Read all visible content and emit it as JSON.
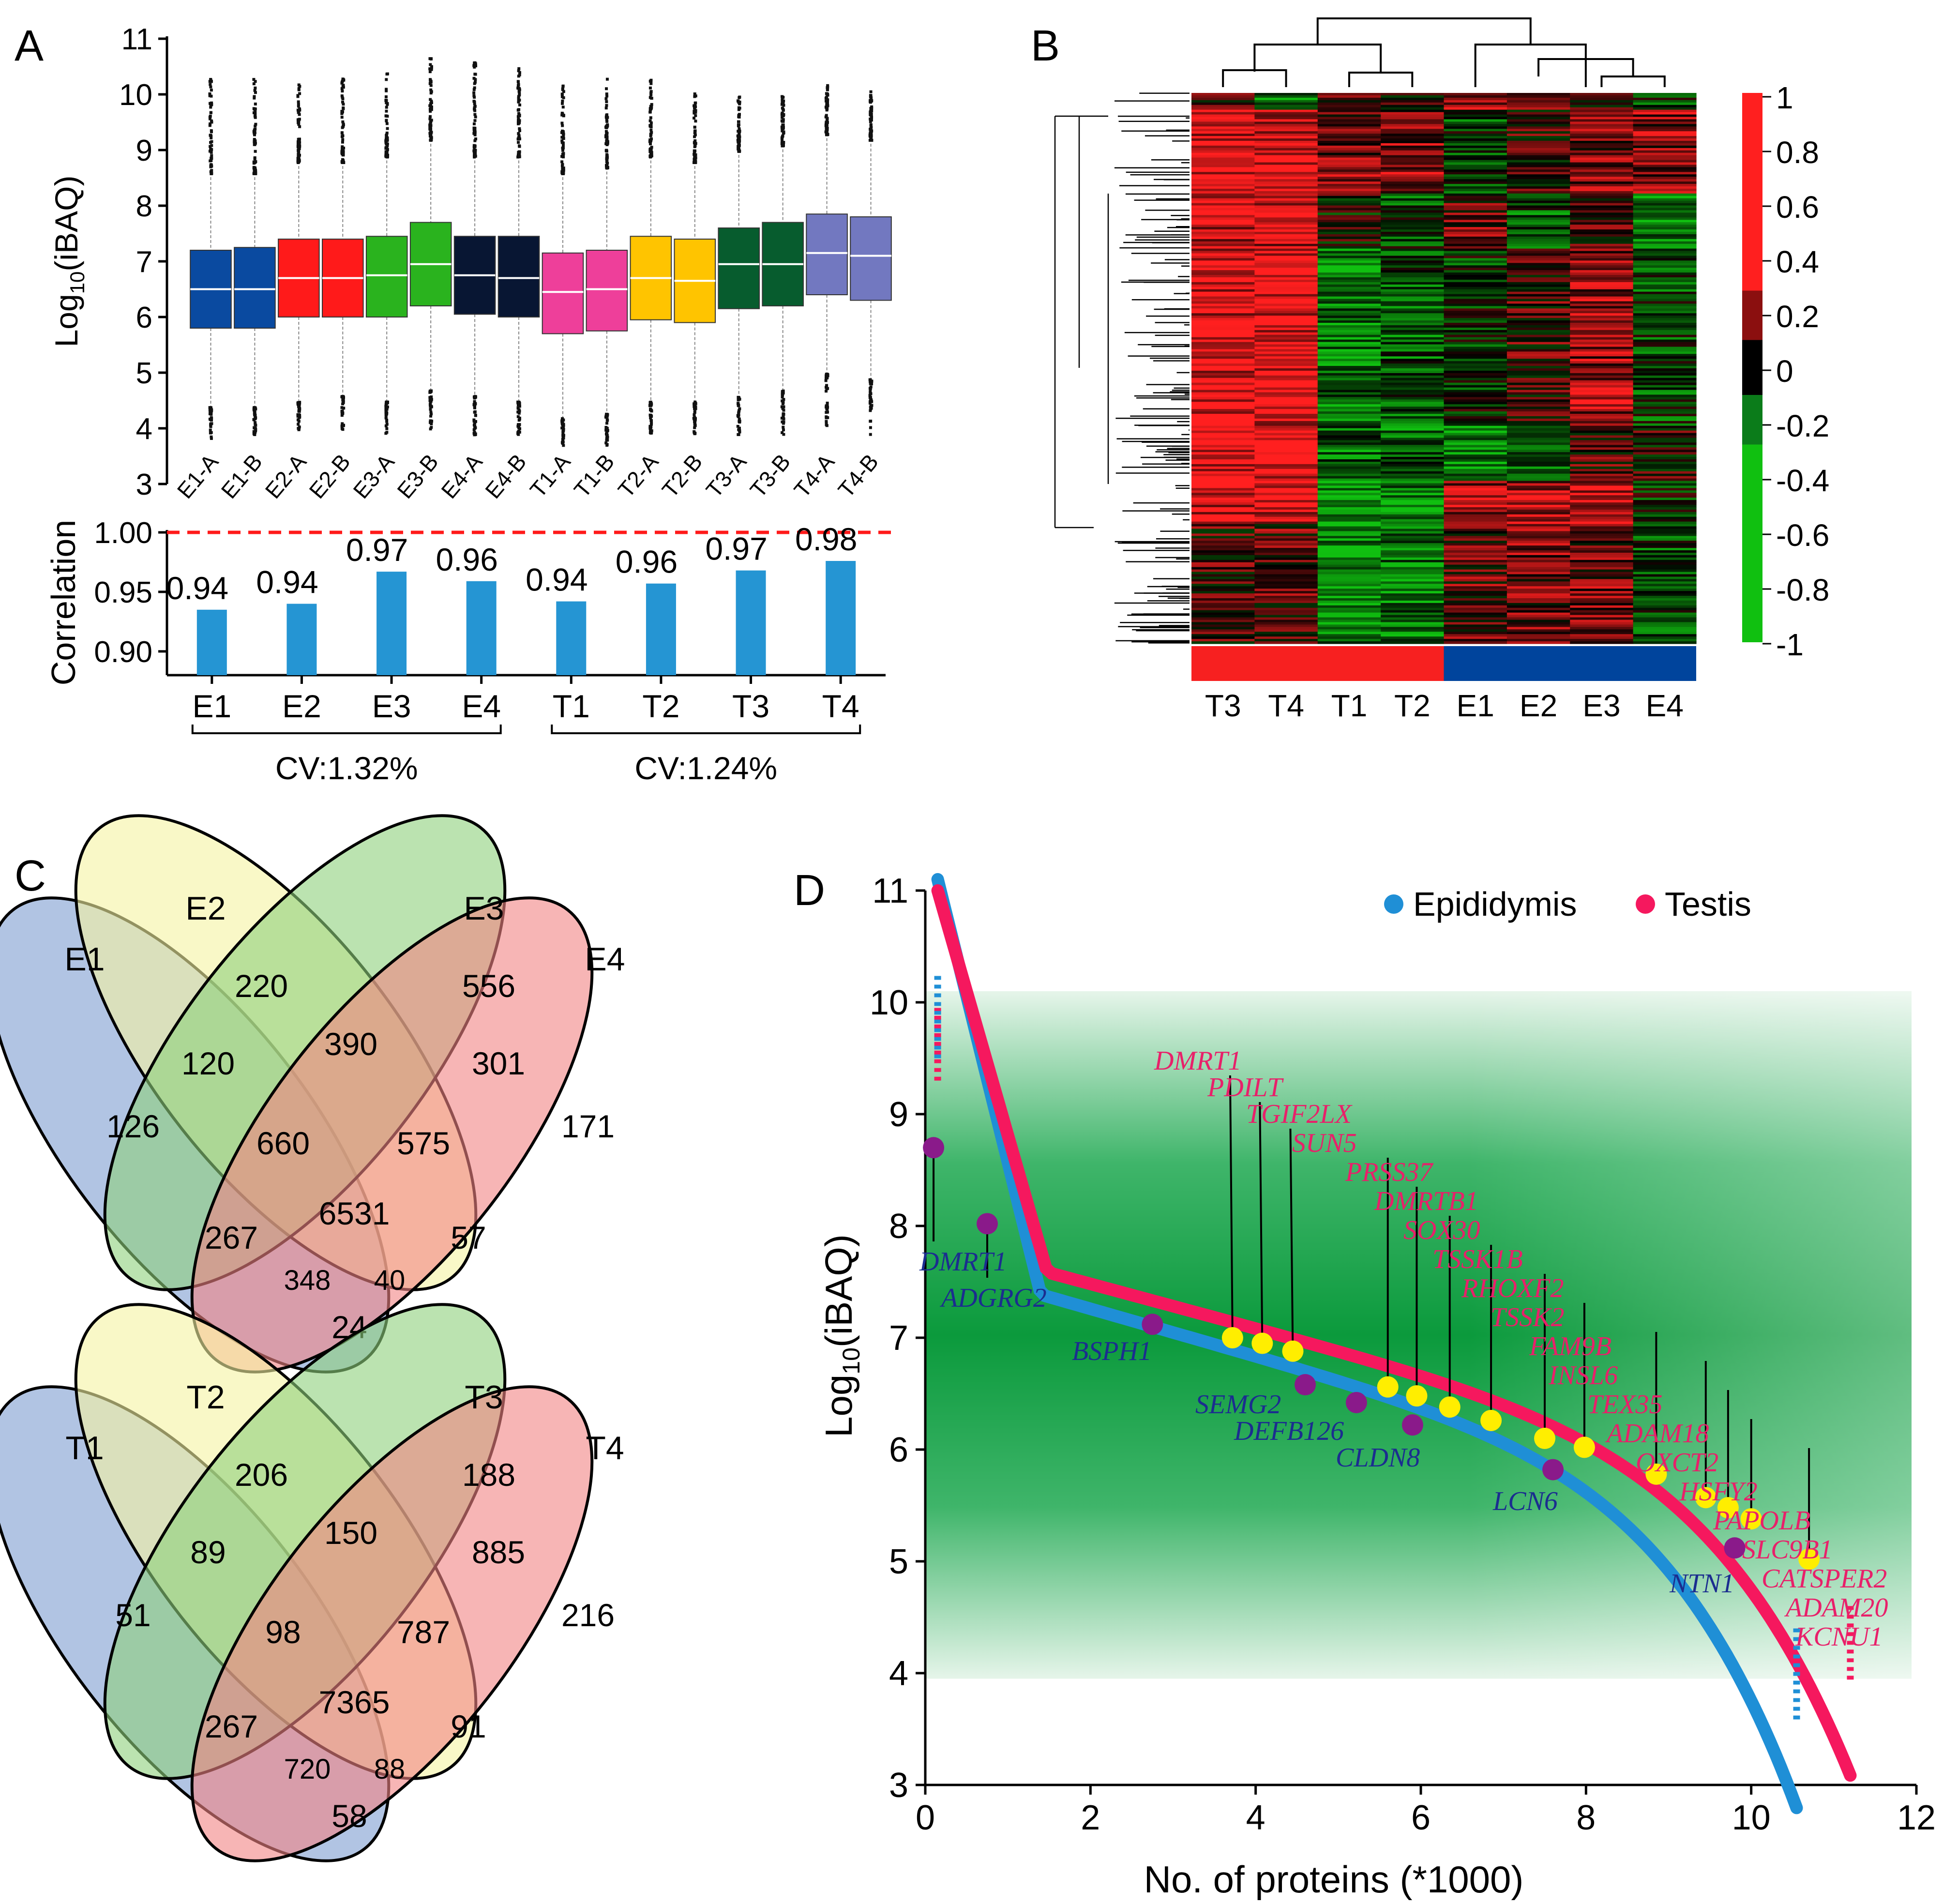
{
  "panel_labels": {
    "a": "A",
    "b": "B",
    "c": "C",
    "d": "D"
  },
  "chart_data": [
    {
      "id": "A-box",
      "type": "box",
      "ylabel_main": "Log",
      "ylabel_sub": "10",
      "ylabel_tail": "(iBAQ)",
      "ylim": [
        3,
        11
      ],
      "yticks": [
        "3",
        "4",
        "5",
        "6",
        "7",
        "8",
        "9",
        "10",
        "11"
      ],
      "colors": {
        "E1": "#0a4aa0",
        "E2": "#ff1a1a",
        "E3": "#2ab31e",
        "E4": "#081633",
        "T1": "#ee3f9a",
        "T2": "#ffc400",
        "T3": "#075c2e",
        "T4": "#7278c0"
      },
      "boxes": [
        {
          "label": "E1-A",
          "group": "E1",
          "q1": 5.8,
          "median": 6.5,
          "q3": 7.2,
          "wlo": 4.4,
          "whi": 8.6,
          "outlo": 3.8,
          "outhi": 10.3
        },
        {
          "label": "E1-B",
          "group": "E1",
          "q1": 5.8,
          "median": 6.5,
          "q3": 7.25,
          "wlo": 4.4,
          "whi": 8.6,
          "outlo": 3.9,
          "outhi": 10.3
        },
        {
          "label": "E2-A",
          "group": "E2",
          "q1": 6.0,
          "median": 6.7,
          "q3": 7.4,
          "wlo": 4.5,
          "whi": 8.8,
          "outlo": 3.9,
          "outhi": 10.3
        },
        {
          "label": "E2-B",
          "group": "E2",
          "q1": 6.0,
          "median": 6.7,
          "q3": 7.4,
          "wlo": 4.6,
          "whi": 8.8,
          "outlo": 4.0,
          "outhi": 10.4
        },
        {
          "label": "E3-A",
          "group": "E3",
          "q1": 6.0,
          "median": 6.75,
          "q3": 7.45,
          "wlo": 4.5,
          "whi": 8.9,
          "outlo": 3.9,
          "outhi": 10.4
        },
        {
          "label": "E3-B",
          "group": "E3",
          "q1": 6.2,
          "median": 6.95,
          "q3": 7.7,
          "wlo": 4.7,
          "whi": 9.2,
          "outlo": 4.0,
          "outhi": 10.7
        },
        {
          "label": "E4-A",
          "group": "E4",
          "q1": 6.05,
          "median": 6.75,
          "q3": 7.45,
          "wlo": 4.6,
          "whi": 8.9,
          "outlo": 3.9,
          "outhi": 10.6
        },
        {
          "label": "E4-B",
          "group": "E4",
          "q1": 6.0,
          "median": 6.7,
          "q3": 7.45,
          "wlo": 4.5,
          "whi": 8.9,
          "outlo": 3.9,
          "outhi": 10.5
        },
        {
          "label": "T1-A",
          "group": "T1",
          "q1": 5.7,
          "median": 6.45,
          "q3": 7.15,
          "wlo": 4.2,
          "whi": 8.6,
          "outlo": 3.7,
          "outhi": 10.2
        },
        {
          "label": "T1-B",
          "group": "T1",
          "q1": 5.75,
          "median": 6.5,
          "q3": 7.2,
          "wlo": 4.3,
          "whi": 8.7,
          "outlo": 3.7,
          "outhi": 10.3
        },
        {
          "label": "T2-A",
          "group": "T2",
          "q1": 5.95,
          "median": 6.7,
          "q3": 7.45,
          "wlo": 4.5,
          "whi": 8.9,
          "outlo": 3.9,
          "outhi": 10.3
        },
        {
          "label": "T2-B",
          "group": "T2",
          "q1": 5.9,
          "median": 6.65,
          "q3": 7.4,
          "wlo": 4.5,
          "whi": 8.8,
          "outlo": 3.9,
          "outhi": 10.1
        },
        {
          "label": "T3-A",
          "group": "T3",
          "q1": 6.15,
          "median": 6.95,
          "q3": 7.6,
          "wlo": 4.6,
          "whi": 9.0,
          "outlo": 3.9,
          "outhi": 10.0
        },
        {
          "label": "T3-B",
          "group": "T3",
          "q1": 6.2,
          "median": 6.95,
          "q3": 7.7,
          "wlo": 4.7,
          "whi": 9.1,
          "outlo": 3.9,
          "outhi": 10.0
        },
        {
          "label": "T4-A",
          "group": "T4",
          "q1": 6.4,
          "median": 7.15,
          "q3": 7.85,
          "wlo": 5.0,
          "whi": 9.3,
          "outlo": 4.0,
          "outhi": 10.2
        },
        {
          "label": "T4-B",
          "group": "T4",
          "q1": 6.3,
          "median": 7.1,
          "q3": 7.8,
          "wlo": 4.9,
          "whi": 9.2,
          "outlo": 3.9,
          "outhi": 10.1
        }
      ]
    },
    {
      "id": "A-bar",
      "type": "bar",
      "ylabel": "Correlation",
      "ylim": [
        0.88,
        1.0
      ],
      "yticks": [
        "0.90",
        "0.95",
        "1.00"
      ],
      "threshold": 1.0,
      "bar_color": "#2595d3",
      "threshold_color": "#ff1a1a",
      "categories": [
        "E1",
        "E2",
        "E3",
        "E4",
        "T1",
        "T2",
        "T3",
        "T4"
      ],
      "values": [
        0.935,
        0.94,
        0.967,
        0.959,
        0.942,
        0.957,
        0.968,
        0.976
      ],
      "labels": [
        "0.94",
        "0.94",
        "0.97",
        "0.96",
        "0.94",
        "0.96",
        "0.97",
        "0.98"
      ],
      "groups": [
        {
          "label": "CV:1.32%",
          "members": [
            "E1",
            "E4"
          ]
        },
        {
          "label": "CV:1.24%",
          "members": [
            "T1",
            "T4"
          ]
        }
      ]
    },
    {
      "id": "B-heatmap",
      "type": "heatmap",
      "columns": [
        "T3",
        "T4",
        "T1",
        "T2",
        "E1",
        "E2",
        "E3",
        "E4"
      ],
      "column_groups": [
        {
          "name": "Testis",
          "members": [
            "T3",
            "T4",
            "T1",
            "T2"
          ],
          "color": "#f72020"
        },
        {
          "name": "Epididymis",
          "members": [
            "E1",
            "E2",
            "E3",
            "E4"
          ],
          "color": "#00449c"
        }
      ],
      "colorbar_ticks": [
        "1",
        "0.8",
        "0.6",
        "0.4",
        "0.2",
        "0",
        "-0.2",
        "-0.4",
        "-0.6",
        "-0.8",
        "-1"
      ],
      "color_high": "#ff1f1f",
      "color_mid": "#000000",
      "color_low": "#10c010",
      "blocks": [
        {
          "rows": 0.03,
          "values": [
            0.3,
            -0.5,
            0.3,
            0.0,
            0.6,
            0.5,
            0.2,
            -0.3
          ]
        },
        {
          "rows": 0.15,
          "values": [
            0.9,
            0.9,
            0.4,
            0.5,
            -0.3,
            0.2,
            0.4,
            0.5
          ]
        },
        {
          "rows": 0.1,
          "values": [
            0.8,
            0.8,
            0.0,
            -0.3,
            0.3,
            -0.4,
            0.2,
            -0.6
          ]
        },
        {
          "rows": 0.32,
          "values": [
            0.9,
            0.95,
            -0.6,
            -0.4,
            -0.2,
            0.2,
            0.6,
            -0.3
          ]
        },
        {
          "rows": 0.1,
          "values": [
            0.9,
            0.9,
            -0.5,
            -0.5,
            -0.7,
            -0.4,
            0.2,
            0.1
          ]
        },
        {
          "rows": 0.08,
          "values": [
            0.9,
            0.9,
            -0.8,
            -0.7,
            0.6,
            0.7,
            0.8,
            -0.2
          ]
        },
        {
          "rows": 0.22,
          "values": [
            0.2,
            0.3,
            -0.7,
            -0.6,
            0.3,
            0.4,
            0.4,
            -0.3
          ]
        }
      ]
    },
    {
      "id": "C-venn-E",
      "type": "venn4",
      "sets": [
        "E1",
        "E2",
        "E3",
        "E4"
      ],
      "colors": [
        "#7d9cd0",
        "#f5f3a2",
        "#8ed07c",
        "#f28484"
      ],
      "regions": {
        "only1": "126",
        "only2": "220",
        "only3": "556",
        "only4": "171",
        "r12": "120",
        "r23": "390",
        "r34": "301",
        "r123": "660",
        "r234": "575",
        "r13": "267",
        "r1234": "6531",
        "r24": "57",
        "r134": "348",
        "r124": "40",
        "r14": "24"
      }
    },
    {
      "id": "C-venn-T",
      "type": "venn4",
      "sets": [
        "T1",
        "T2",
        "T3",
        "T4"
      ],
      "colors": [
        "#7d9cd0",
        "#f5f3a2",
        "#8ed07c",
        "#f28484"
      ],
      "regions": {
        "only1": "51",
        "only2": "206",
        "only3": "188",
        "only4": "216",
        "r12": "89",
        "r23": "150",
        "r34": "885",
        "r123": "98",
        "r234": "787",
        "r13": "267",
        "r1234": "7365",
        "r24": "91",
        "r134": "720",
        "r124": "88",
        "r14": "58"
      }
    },
    {
      "id": "D-rank",
      "type": "scatter",
      "xlabel": "No. of proteins (*1000)",
      "ylabel_main": "Log",
      "ylabel_sub": "10",
      "ylabel_tail": "(iBAQ)",
      "xlim": [
        0,
        12
      ],
      "ylim": [
        3,
        11
      ],
      "xticks": [
        "0",
        "2",
        "4",
        "6",
        "8",
        "10",
        "12"
      ],
      "yticks": [
        "3",
        "4",
        "5",
        "6",
        "7",
        "8",
        "9",
        "10",
        "11"
      ],
      "shade_range": [
        3.95,
        10.1
      ],
      "legend": [
        {
          "name": "Epididymis",
          "color": "#1f8fd6"
        },
        {
          "name": "Testis",
          "color": "#f5185e"
        }
      ],
      "series": [
        {
          "name": "Epididymis",
          "n": 10.55,
          "color": "#1f8fd6"
        },
        {
          "name": "Testis",
          "n": 11.2,
          "color": "#f5185e"
        }
      ],
      "epididymis_markers": [
        {
          "name": "DMRT1",
          "x": 0.1,
          "y": 8.7
        },
        {
          "name": "ADGRG2",
          "x": 0.75,
          "y": 8.02
        },
        {
          "name": "BSPH1",
          "x": 2.75,
          "y": 7.12
        },
        {
          "name": "SEMG2",
          "x": 4.6,
          "y": 6.58
        },
        {
          "name": "DEFB126",
          "x": 5.22,
          "y": 6.42
        },
        {
          "name": "CLDN8",
          "x": 5.9,
          "y": 6.22
        },
        {
          "name": "LCN6",
          "x": 7.6,
          "y": 5.82
        },
        {
          "name": "NTN1",
          "x": 9.8,
          "y": 5.12
        }
      ],
      "testis_markers": [
        {
          "name": "DMRT1",
          "x": 3.72,
          "y": 7.0
        },
        {
          "name": "PDILT",
          "x": 4.08,
          "y": 6.95
        },
        {
          "name": "TGIF2LX",
          "x": 4.45,
          "y": 6.88
        },
        {
          "name": "SUN5",
          "x": 5.6,
          "y": 6.56
        },
        {
          "name": "PRSS37",
          "x": 5.95,
          "y": 6.48
        },
        {
          "name": "DMRTB1",
          "x": 6.35,
          "y": 6.38
        },
        {
          "name": "SOX30",
          "x": 6.85,
          "y": 6.26
        },
        {
          "name": "TSSK1B",
          "x": 7.5,
          "y": 6.1
        },
        {
          "name": "RHOXF2",
          "x": 7.98,
          "y": 6.02
        },
        {
          "name": "TSSK2",
          "x": 8.85,
          "y": 5.78
        },
        {
          "name": "FAM9B",
          "x": 9.45,
          "y": 5.57
        },
        {
          "name": "INSL6",
          "x": 9.72,
          "y": 5.48
        },
        {
          "name": "TEX35",
          "x": 10.0,
          "y": 5.38
        },
        {
          "name": "ADAM18",
          "x": 10.7,
          "y": 5.02
        }
      ],
      "testis_labels": [
        "DMRT1",
        "PDILT",
        "TGIF2LX",
        "SUN5",
        "PRSS37",
        "DMRTB1",
        "SOX30",
        "TSSK1B",
        "RHOXF2",
        "TSSK2",
        "FAM9B",
        "INSL6",
        "TEX35",
        "ADAM18",
        "OXCT2",
        "HSFY2",
        "PAPOLB",
        "SLC9B1",
        "CATSPER2",
        "ADAM20",
        "KCNU1"
      ],
      "epididymis_labels": [
        "DMRT1",
        "ADGRG2",
        "BSPH1",
        "SEMG2",
        "DEFB126",
        "CLDN8",
        "LCN6",
        "NTN1"
      ],
      "label_colors": {
        "testis": "#e8206a",
        "epididymis": "#1b2d8f",
        "marker_testis": "#ffee00",
        "marker_epi": "#8a1a8a"
      }
    }
  ]
}
